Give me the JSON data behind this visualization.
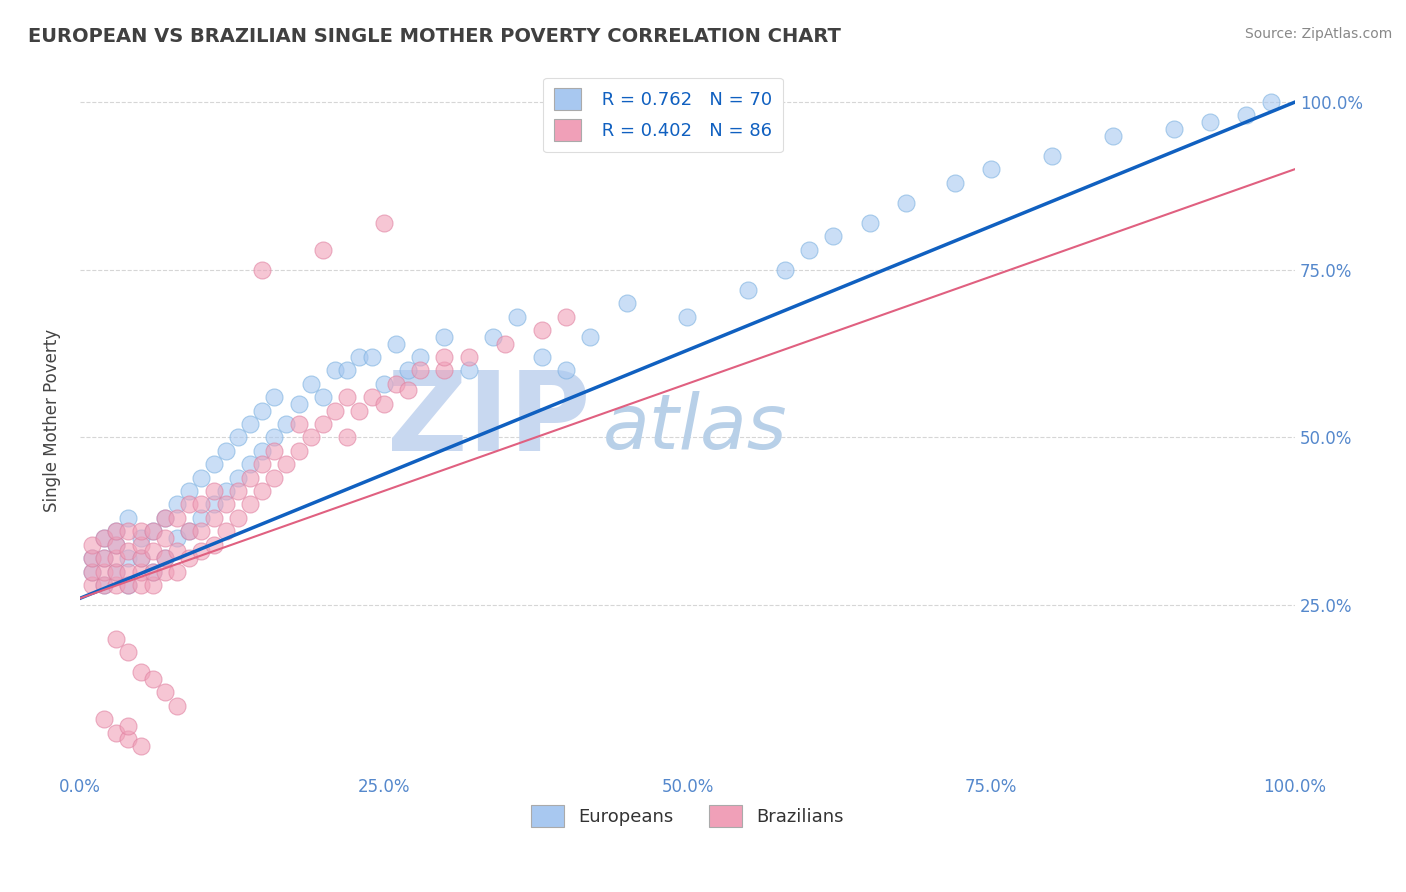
{
  "title": "EUROPEAN VS BRAZILIAN SINGLE MOTHER POVERTY CORRELATION CHART",
  "source_text": "Source: ZipAtlas.com",
  "ylabel": "Single Mother Poverty",
  "watermark_zip": "ZIP",
  "watermark_atlas": "atlas",
  "legend_r_blue": "R = 0.762",
  "legend_n_blue": "N = 70",
  "legend_r_pink": "R = 0.402",
  "legend_n_pink": "N = 86",
  "legend_label_blue": "Europeans",
  "legend_label_pink": "Brazilians",
  "xlim": [
    0,
    1.0
  ],
  "ylim": [
    0,
    1.05
  ],
  "xtick_labels": [
    "0.0%",
    "25.0%",
    "50.0%",
    "75.0%",
    "100.0%"
  ],
  "xtick_vals": [
    0,
    0.25,
    0.5,
    0.75,
    1.0
  ],
  "ytick_labels": [
    "25.0%",
    "50.0%",
    "75.0%",
    "100.0%"
  ],
  "ytick_vals": [
    0.25,
    0.5,
    0.75,
    1.0
  ],
  "blue_color": "#a8c8f0",
  "pink_color": "#f0a0b8",
  "blue_line_color": "#1060c0",
  "pink_line_color": "#e06080",
  "title_color": "#404040",
  "source_color": "#888888",
  "watermark_zip_color": "#c8d8f0",
  "watermark_atlas_color": "#b8d0e8",
  "axis_label_color": "#5588cc",
  "blue_scatter": {
    "x": [
      0.01,
      0.01,
      0.02,
      0.02,
      0.02,
      0.03,
      0.03,
      0.03,
      0.04,
      0.04,
      0.04,
      0.05,
      0.05,
      0.06,
      0.06,
      0.07,
      0.07,
      0.08,
      0.08,
      0.09,
      0.09,
      0.1,
      0.1,
      0.11,
      0.11,
      0.12,
      0.12,
      0.13,
      0.13,
      0.14,
      0.14,
      0.15,
      0.15,
      0.16,
      0.16,
      0.17,
      0.18,
      0.19,
      0.2,
      0.21,
      0.22,
      0.23,
      0.24,
      0.25,
      0.26,
      0.27,
      0.28,
      0.3,
      0.32,
      0.34,
      0.36,
      0.38,
      0.4,
      0.42,
      0.45,
      0.5,
      0.55,
      0.58,
      0.6,
      0.62,
      0.65,
      0.68,
      0.72,
      0.75,
      0.8,
      0.85,
      0.9,
      0.93,
      0.96,
      0.98
    ],
    "y": [
      0.3,
      0.32,
      0.28,
      0.32,
      0.35,
      0.3,
      0.34,
      0.36,
      0.28,
      0.32,
      0.38,
      0.32,
      0.35,
      0.3,
      0.36,
      0.32,
      0.38,
      0.35,
      0.4,
      0.36,
      0.42,
      0.38,
      0.44,
      0.4,
      0.46,
      0.42,
      0.48,
      0.44,
      0.5,
      0.46,
      0.52,
      0.48,
      0.54,
      0.5,
      0.56,
      0.52,
      0.55,
      0.58,
      0.56,
      0.6,
      0.6,
      0.62,
      0.62,
      0.58,
      0.64,
      0.6,
      0.62,
      0.65,
      0.6,
      0.65,
      0.68,
      0.62,
      0.6,
      0.65,
      0.7,
      0.68,
      0.72,
      0.75,
      0.78,
      0.8,
      0.82,
      0.85,
      0.88,
      0.9,
      0.92,
      0.95,
      0.96,
      0.97,
      0.98,
      1.0
    ]
  },
  "pink_scatter": {
    "x": [
      0.01,
      0.01,
      0.01,
      0.01,
      0.02,
      0.02,
      0.02,
      0.02,
      0.03,
      0.03,
      0.03,
      0.03,
      0.03,
      0.04,
      0.04,
      0.04,
      0.04,
      0.05,
      0.05,
      0.05,
      0.05,
      0.05,
      0.06,
      0.06,
      0.06,
      0.06,
      0.07,
      0.07,
      0.07,
      0.07,
      0.08,
      0.08,
      0.08,
      0.09,
      0.09,
      0.09,
      0.1,
      0.1,
      0.1,
      0.11,
      0.11,
      0.11,
      0.12,
      0.12,
      0.13,
      0.13,
      0.14,
      0.14,
      0.15,
      0.15,
      0.16,
      0.16,
      0.17,
      0.18,
      0.18,
      0.19,
      0.2,
      0.21,
      0.22,
      0.22,
      0.23,
      0.24,
      0.25,
      0.26,
      0.27,
      0.28,
      0.3,
      0.3,
      0.32,
      0.35,
      0.38,
      0.4,
      0.15,
      0.2,
      0.25,
      0.03,
      0.04,
      0.05,
      0.06,
      0.07,
      0.08,
      0.02,
      0.03,
      0.04,
      0.04,
      0.05
    ],
    "y": [
      0.28,
      0.3,
      0.32,
      0.34,
      0.28,
      0.3,
      0.32,
      0.35,
      0.28,
      0.3,
      0.32,
      0.34,
      0.36,
      0.28,
      0.3,
      0.33,
      0.36,
      0.28,
      0.3,
      0.32,
      0.34,
      0.36,
      0.28,
      0.3,
      0.33,
      0.36,
      0.3,
      0.32,
      0.35,
      0.38,
      0.3,
      0.33,
      0.38,
      0.32,
      0.36,
      0.4,
      0.33,
      0.36,
      0.4,
      0.34,
      0.38,
      0.42,
      0.36,
      0.4,
      0.38,
      0.42,
      0.4,
      0.44,
      0.42,
      0.46,
      0.44,
      0.48,
      0.46,
      0.48,
      0.52,
      0.5,
      0.52,
      0.54,
      0.5,
      0.56,
      0.54,
      0.56,
      0.55,
      0.58,
      0.57,
      0.6,
      0.6,
      0.62,
      0.62,
      0.64,
      0.66,
      0.68,
      0.75,
      0.78,
      0.82,
      0.2,
      0.18,
      0.15,
      0.14,
      0.12,
      0.1,
      0.08,
      0.06,
      0.05,
      0.07,
      0.04
    ]
  },
  "blue_line": {
    "x0": 0,
    "y0": 0.26,
    "x1": 1.0,
    "y1": 1.0
  },
  "pink_line": {
    "x0": 0,
    "y0": 0.26,
    "x1": 1.0,
    "y1": 0.9
  }
}
